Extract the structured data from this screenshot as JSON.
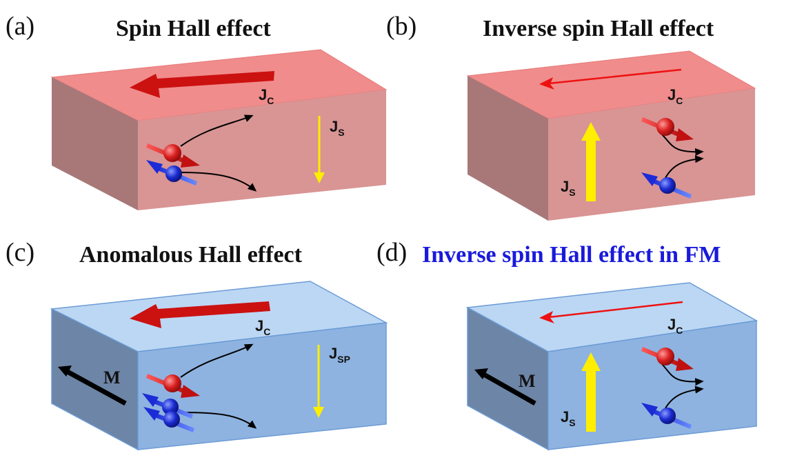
{
  "colors": {
    "red_block_top": "#f08c8c",
    "red_block_front": "#d99494",
    "red_block_side": "#a87878",
    "blue_block_top": "#bcd7f3",
    "blue_block_front": "#8eb3e0",
    "blue_block_side": "#6d85a6",
    "block_edge": "#6b9bd6",
    "charge_current_arrow": "#cc1111",
    "spin_current_arrow": "#ffee00",
    "title_blue": "#1a1adb",
    "spin_up_sphere": "#d81e1e",
    "spin_down_sphere": "#1a2ad0"
  },
  "panels": [
    {
      "letter": "(a)",
      "title": "Spin Hall effect",
      "title_color": "#111111",
      "charge_current": {
        "label": "J",
        "sub": "C"
      },
      "spin_current": {
        "label": "J",
        "sub": "S"
      },
      "magnetization_label": ""
    },
    {
      "letter": "(b)",
      "title": "Inverse spin Hall effect",
      "title_color": "#111111",
      "charge_current": {
        "label": "J",
        "sub": "C"
      },
      "spin_current": {
        "label": "J",
        "sub": "S"
      },
      "magnetization_label": ""
    },
    {
      "letter": "(c)",
      "title": "Anomalous  Hall effect",
      "title_color": "#111111",
      "charge_current": {
        "label": "J",
        "sub": "C"
      },
      "spin_current": {
        "label": "J",
        "sub": "SP"
      },
      "magnetization_label": "M"
    },
    {
      "letter": "(d)",
      "title": "Inverse spin Hall effect in FM",
      "title_color": "#1a1adb",
      "charge_current": {
        "label": "J",
        "sub": "C"
      },
      "spin_current": {
        "label": "J",
        "sub": "S"
      },
      "magnetization_label": "M"
    }
  ]
}
